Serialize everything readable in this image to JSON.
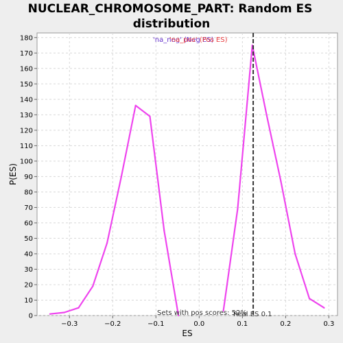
{
  "chart_data": {
    "type": "line",
    "title": "NUCLEAR_CHROMOSOME_PART: Random ES distribution",
    "title_lines": [
      "NUCLEAR_CHROMOSOME_PART: Random ES",
      "distribution"
    ],
    "xlabel": "ES",
    "ylabel": "P(ES)",
    "xlim": [
      -0.375,
      0.32
    ],
    "ylim": [
      0,
      183
    ],
    "xticks": [
      -0.3,
      -0.2,
      -0.1,
      0.0,
      0.1,
      0.2,
      0.3
    ],
    "xtick_labels": [
      "−0.3",
      "−0.2",
      "−0.1",
      "0.0",
      "0.1",
      "0.2",
      "0.3"
    ],
    "yticks": [
      0,
      10,
      20,
      30,
      40,
      50,
      60,
      70,
      80,
      90,
      100,
      110,
      120,
      130,
      140,
      150,
      160,
      170,
      180
    ],
    "grid": true,
    "legend": {
      "placement": "top-center",
      "entries": [
        {
          "label": "'na_neg' (Neg ES)",
          "color": "#6633cc"
        },
        {
          "label": "'na_pos' (Pos ES)",
          "color": "#e8393b"
        }
      ]
    },
    "series": [
      {
        "color": "#ee44ee",
        "x": [
          -0.345,
          -0.312,
          -0.279,
          -0.246,
          -0.213,
          -0.18,
          -0.147,
          -0.114,
          -0.081,
          -0.048
        ],
        "y": [
          1,
          2,
          5,
          19,
          47,
          90,
          136,
          129,
          55,
          0
        ]
      },
      {
        "color": "#ee44ee",
        "x": [
          0.056,
          0.089,
          0.123,
          0.156,
          0.189,
          0.222,
          0.255,
          0.289
        ],
        "y": [
          3,
          69,
          175,
          130,
          87,
          40,
          11,
          5
        ]
      }
    ],
    "real_es": {
      "value": 0.125,
      "label": "Real ES 0.1"
    },
    "annotation": "Sets with pos scores: 52%"
  }
}
